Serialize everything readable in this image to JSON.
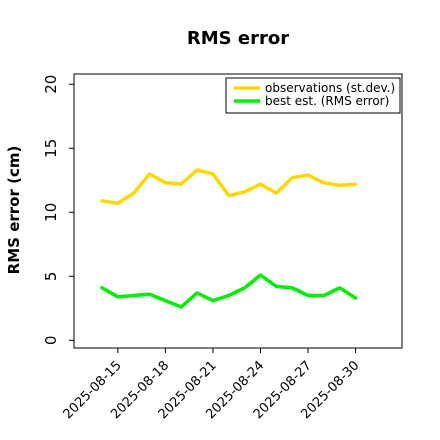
{
  "chart_data": {
    "type": "line",
    "title": "RMS error",
    "ylabel": "RMS error (cm)",
    "xlabel": "",
    "ylim": [
      -0.6,
      20.8
    ],
    "yticks": [
      0,
      5,
      10,
      15,
      20
    ],
    "x": [
      "2025-08-14",
      "2025-08-15",
      "2025-08-16",
      "2025-08-17",
      "2025-08-18",
      "2025-08-19",
      "2025-08-20",
      "2025-08-21",
      "2025-08-22",
      "2025-08-23",
      "2025-08-24",
      "2025-08-25",
      "2025-08-26",
      "2025-08-27",
      "2025-08-28",
      "2025-08-29",
      "2025-08-30"
    ],
    "xticks": [
      {
        "label": "2025-08-15",
        "color": "#000000"
      },
      {
        "label": "2025-08-18",
        "color": "#000000"
      },
      {
        "label": "2025-08-21",
        "color": "#2e8b22"
      },
      {
        "label": "2025-08-24",
        "color": "#000000"
      },
      {
        "label": "2025-08-27",
        "color": "#000000"
      },
      {
        "label": "2025-08-30",
        "color": "#000000"
      }
    ],
    "series": [
      {
        "name": "observations (st.dev.)",
        "color": "#ffd700",
        "values": [
          10.9,
          10.7,
          11.5,
          13.0,
          12.3,
          12.2,
          13.3,
          13.0,
          11.3,
          11.6,
          12.2,
          11.5,
          12.7,
          12.9,
          12.3,
          12.1,
          12.2
        ]
      },
      {
        "name": "best est. (RMS error)",
        "color": "#00ee00",
        "values": [
          4.1,
          3.4,
          3.5,
          3.6,
          3.1,
          2.6,
          3.7,
          3.1,
          3.5,
          4.1,
          5.1,
          4.2,
          4.1,
          3.5,
          3.5,
          4.1,
          3.3
        ]
      }
    ],
    "legend": "top-right",
    "grid": false
  }
}
